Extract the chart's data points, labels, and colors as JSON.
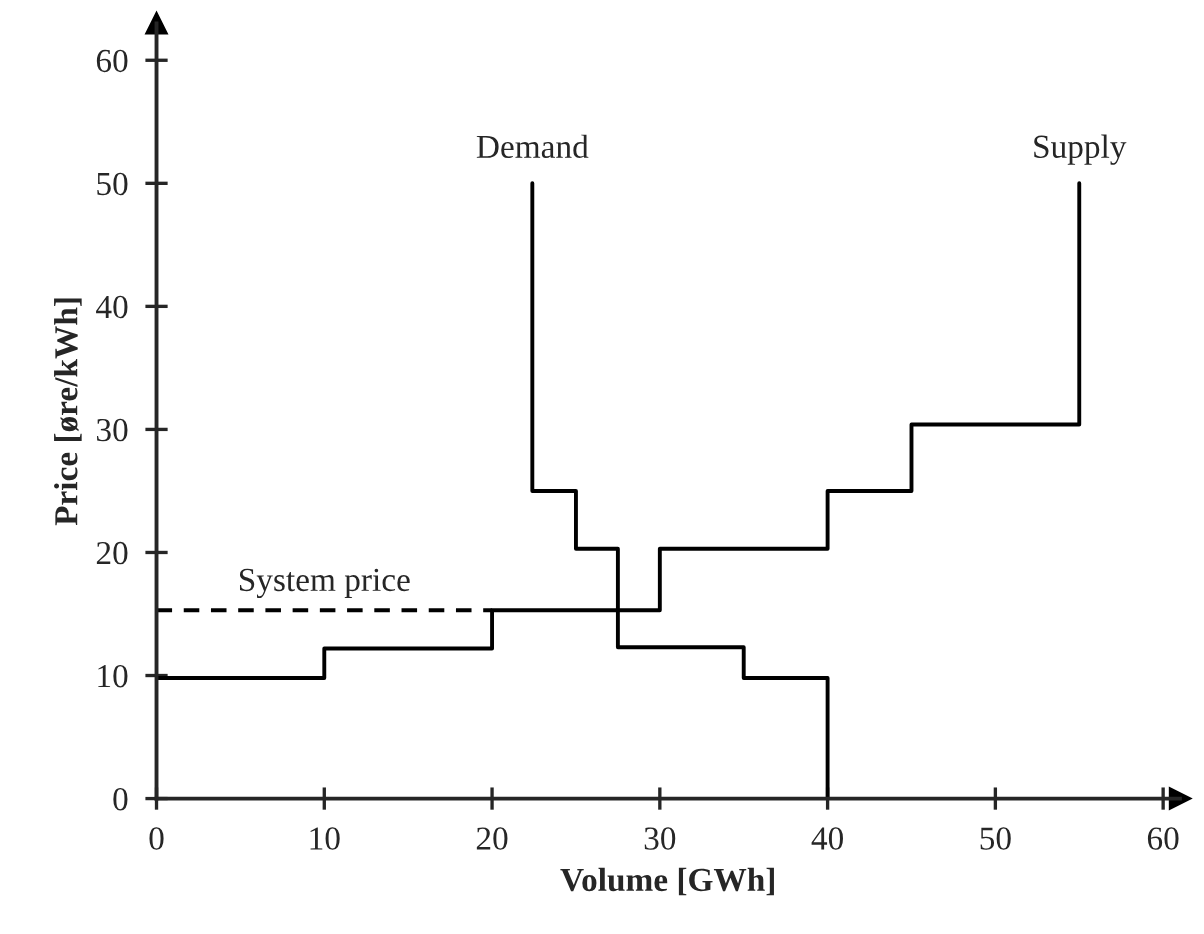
{
  "chart_data": {
    "type": "step",
    "xlabel": "Volume [GWh]",
    "ylabel": "Price [øre/kWh]",
    "xlim": [
      0,
      61
    ],
    "ylim": [
      0,
      63
    ],
    "xticks": [
      0,
      10,
      20,
      30,
      40,
      50,
      60
    ],
    "yticks": [
      0,
      10,
      20,
      30,
      40,
      50,
      60
    ],
    "grid": false,
    "legend": false,
    "marker": "none",
    "series": [
      {
        "name": "Supply",
        "color": "#000000",
        "line_style": "solid",
        "x": [
          0,
          10,
          20,
          30,
          40,
          45,
          55
        ],
        "values": [
          9.8,
          12.2,
          15.3,
          20.3,
          25,
          30.4,
          50
        ]
      },
      {
        "name": "Demand",
        "color": "#000000",
        "line_style": "solid",
        "x": [
          22.4,
          22.4,
          25,
          27.5,
          35,
          40
        ],
        "values": [
          50,
          25,
          20.3,
          12.3,
          9.8,
          0
        ]
      },
      {
        "name": "System price",
        "type": "line",
        "color": "#000000",
        "line_style": "dashed",
        "x": [
          0,
          20
        ],
        "values": [
          15.3,
          15.3
        ]
      }
    ]
  }
}
